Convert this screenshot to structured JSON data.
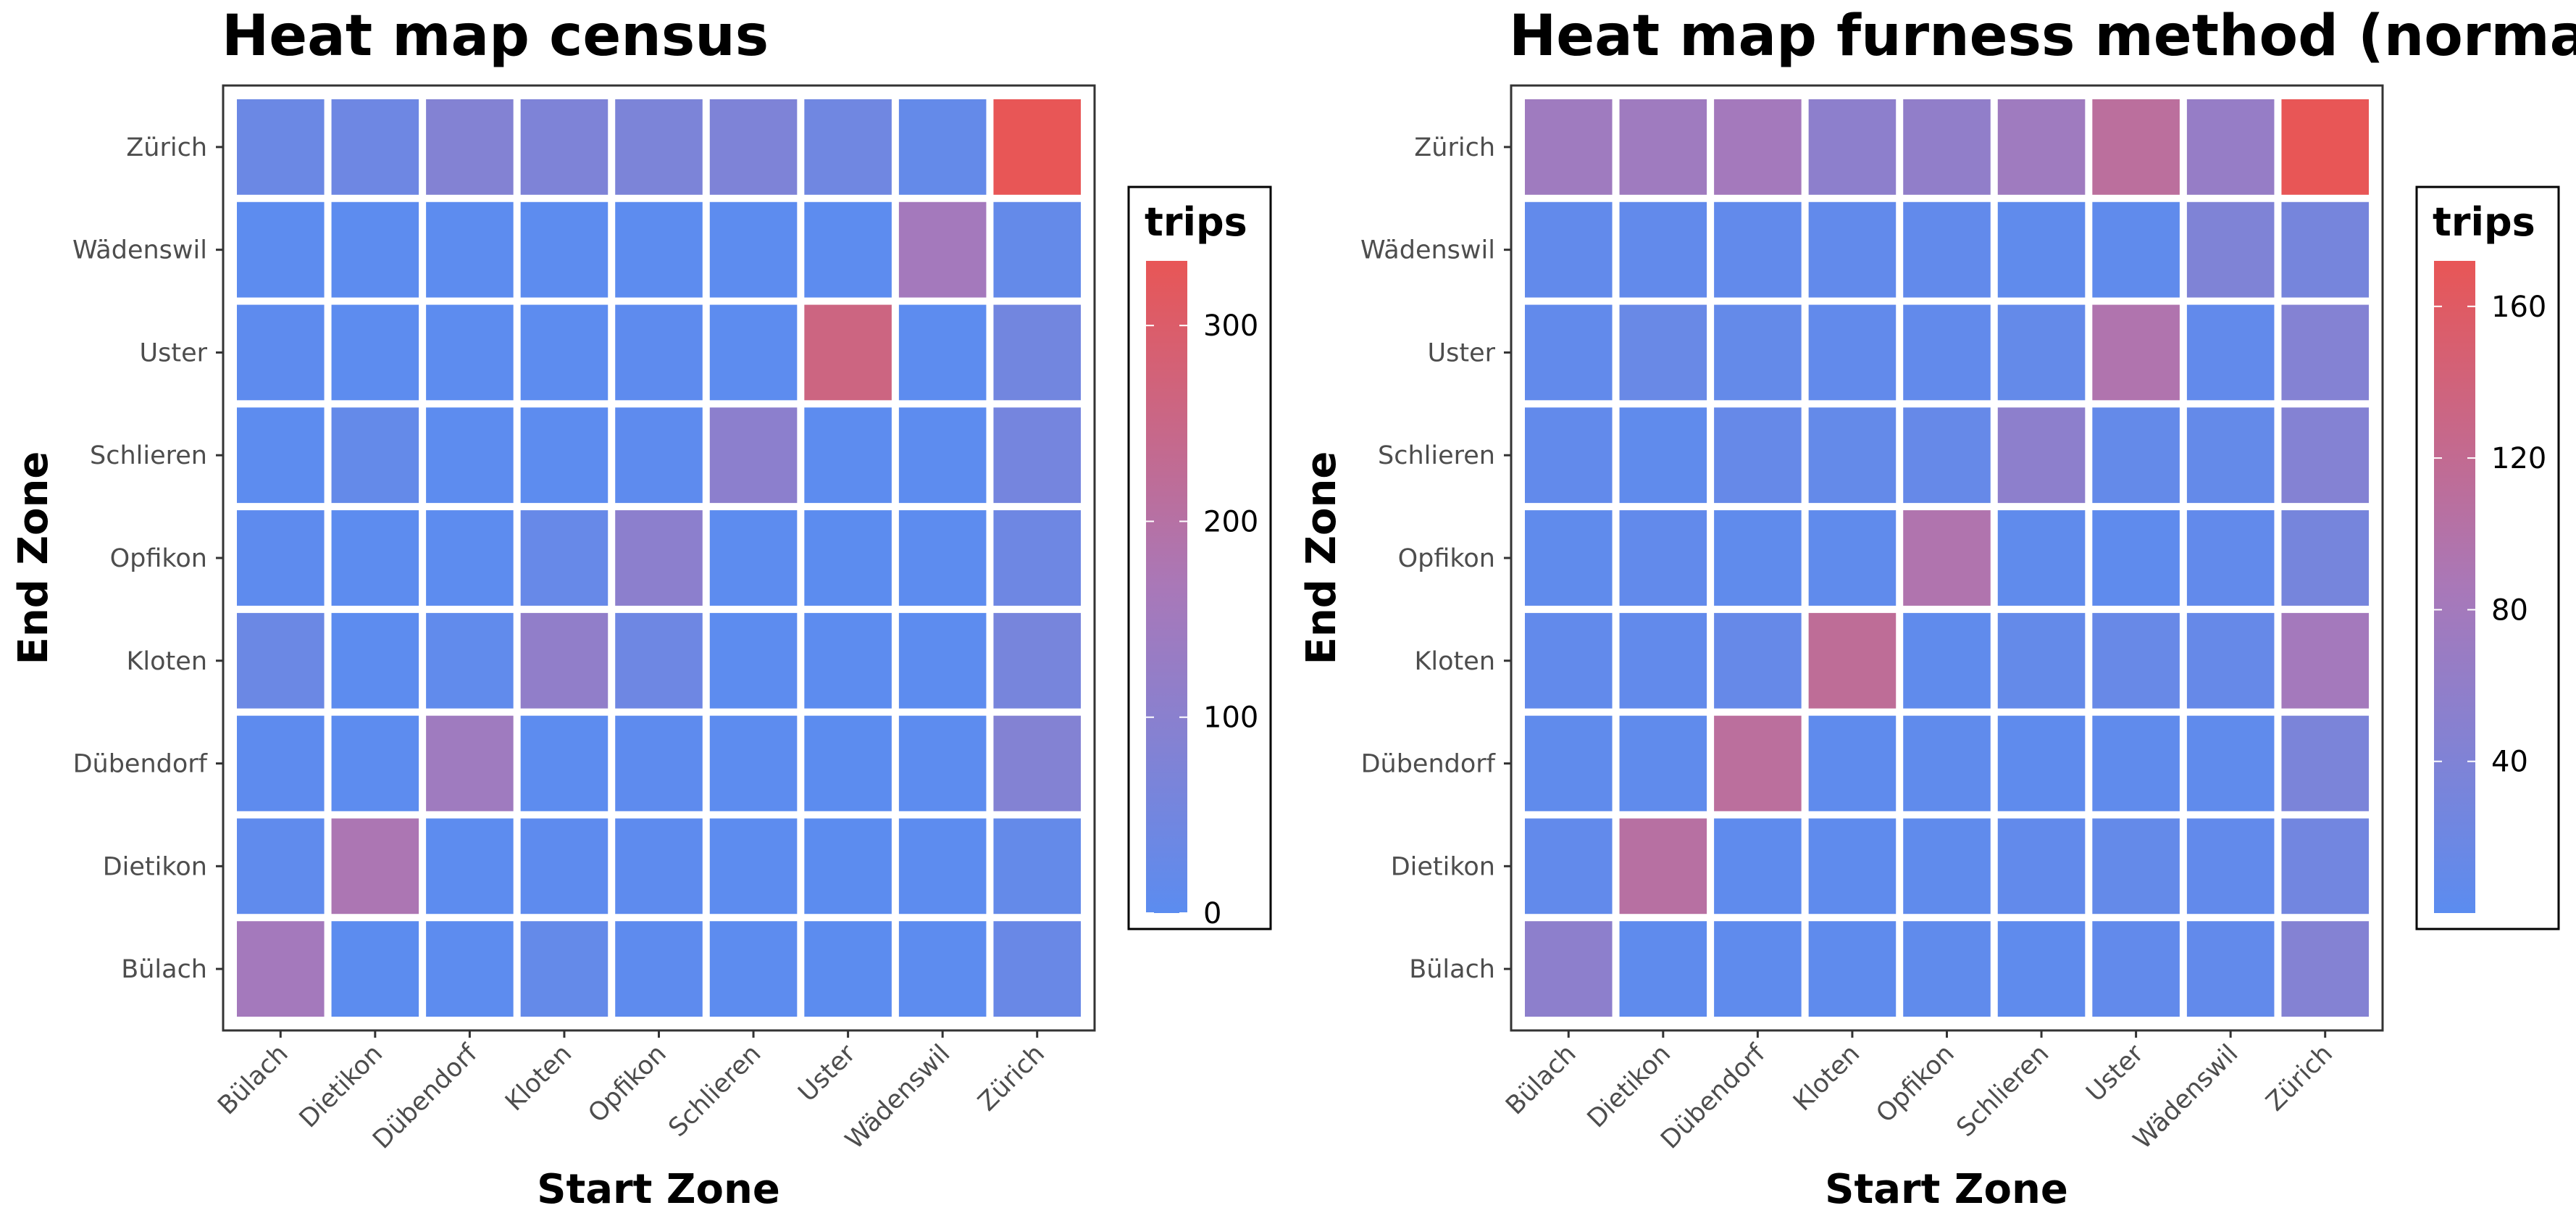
{
  "chart_data": [
    {
      "type": "heatmap",
      "title": "Heat map census",
      "xlabel": "Start Zone",
      "ylabel": "End Zone",
      "x_categories": [
        "Bülach",
        "Dietikon",
        "Dübendorf",
        "Kloten",
        "Opfikon",
        "Schlieren",
        "Uster",
        "Wädenswil",
        "Zürich"
      ],
      "y_categories": [
        "Bülach",
        "Dietikon",
        "Dübendorf",
        "Kloten",
        "Opfikon",
        "Schlieren",
        "Uster",
        "Wädenswil",
        "Zürich"
      ],
      "legend": {
        "title": "trips",
        "min": 0,
        "max": 333,
        "ticks": [
          0,
          100,
          200,
          300
        ],
        "low_color": "#5b8cf0",
        "high_color": "#e85656",
        "position": "right"
      },
      "values": [
        [
          155,
          2,
          4,
          20,
          6,
          4,
          2,
          4,
          30
        ],
        [
          10,
          175,
          4,
          6,
          6,
          4,
          2,
          4,
          20
        ],
        [
          6,
          4,
          145,
          4,
          6,
          4,
          2,
          4,
          85
        ],
        [
          35,
          4,
          12,
          115,
          40,
          4,
          4,
          4,
          60
        ],
        [
          6,
          4,
          4,
          25,
          105,
          4,
          2,
          4,
          40
        ],
        [
          4,
          20,
          4,
          4,
          6,
          105,
          4,
          4,
          55
        ],
        [
          6,
          4,
          4,
          4,
          6,
          4,
          260,
          4,
          50
        ],
        [
          4,
          4,
          4,
          4,
          4,
          4,
          4,
          155,
          20
        ],
        [
          35,
          40,
          85,
          75,
          70,
          75,
          45,
          20,
          333
        ]
      ]
    },
    {
      "type": "heatmap",
      "title": "Heat map furness method (normalized)",
      "xlabel": "Start Zone",
      "ylabel": "End Zone",
      "x_categories": [
        "Bülach",
        "Dietikon",
        "Dübendorf",
        "Kloten",
        "Opfikon",
        "Schlieren",
        "Uster",
        "Wädenswil",
        "Zürich"
      ],
      "y_categories": [
        "Bülach",
        "Dietikon",
        "Dübendorf",
        "Kloten",
        "Opfikon",
        "Schlieren",
        "Uster",
        "Wädenswil",
        "Zürich"
      ],
      "legend": {
        "title": "trips",
        "min": 0,
        "max": 172,
        "ticks": [
          40,
          80,
          120,
          160
        ],
        "low_color": "#5b8cf0",
        "high_color": "#e85656",
        "position": "right"
      },
      "values": [
        [
          55,
          4,
          4,
          4,
          6,
          4,
          8,
          8,
          45
        ],
        [
          8,
          105,
          4,
          4,
          6,
          8,
          10,
          8,
          25
        ],
        [
          6,
          6,
          110,
          4,
          6,
          4,
          6,
          6,
          35
        ],
        [
          8,
          8,
          12,
          115,
          6,
          10,
          14,
          12,
          80
        ],
        [
          6,
          8,
          6,
          6,
          95,
          6,
          4,
          8,
          30
        ],
        [
          8,
          6,
          12,
          10,
          12,
          55,
          10,
          10,
          45
        ],
        [
          8,
          15,
          10,
          8,
          8,
          10,
          95,
          8,
          45
        ],
        [
          8,
          8,
          8,
          8,
          8,
          6,
          6,
          40,
          30
        ],
        [
          75,
          75,
          80,
          55,
          60,
          75,
          110,
          65,
          172
        ]
      ]
    }
  ]
}
